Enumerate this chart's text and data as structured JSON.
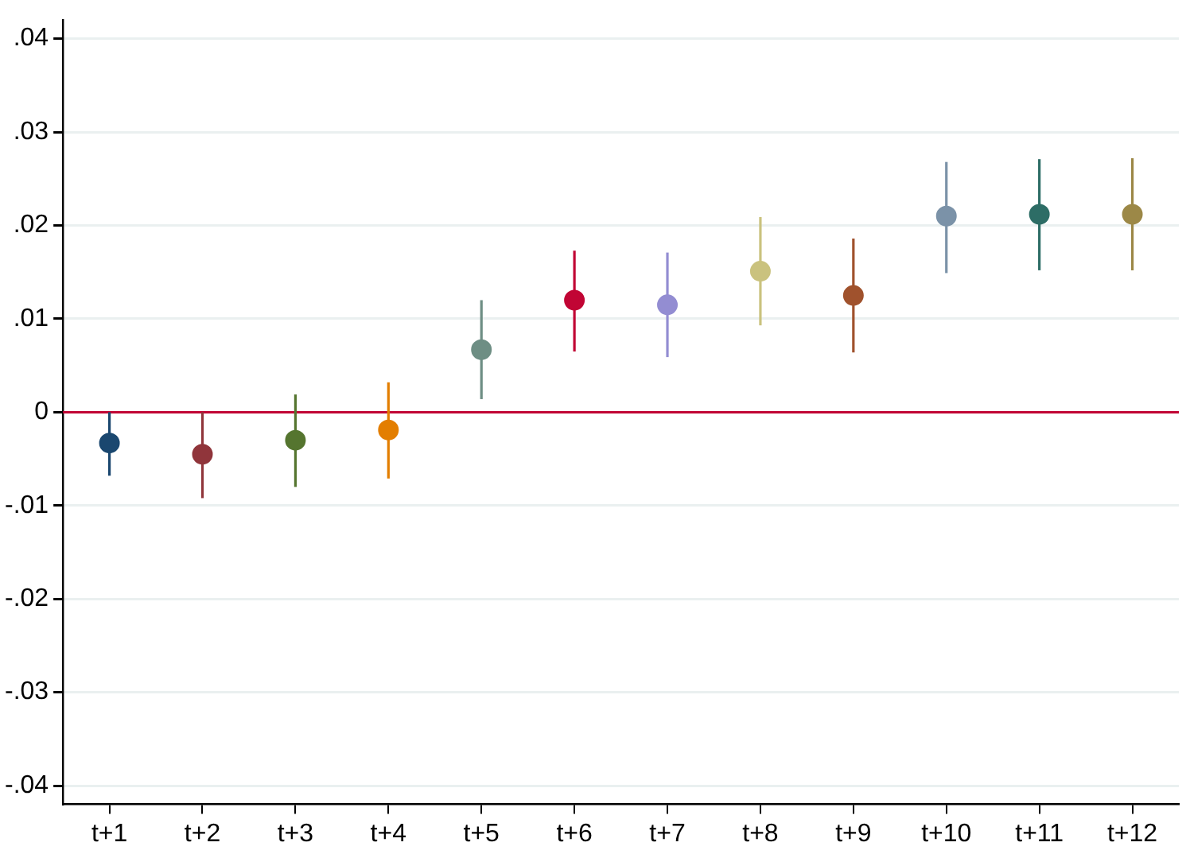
{
  "chart_data": {
    "type": "scatter",
    "categories": [
      "t+1",
      "t+2",
      "t+3",
      "t+4",
      "t+5",
      "t+6",
      "t+7",
      "t+8",
      "t+9",
      "t+10",
      "t+11",
      "t+12"
    ],
    "values": [
      -0.0033,
      -0.0045,
      -0.003,
      -0.0019,
      0.0067,
      0.012,
      0.0115,
      0.0151,
      0.0125,
      0.021,
      0.0212,
      0.0212
    ],
    "errors": [
      [
        -0.0068,
        0.0
      ],
      [
        -0.0092,
        0.0
      ],
      [
        -0.008,
        0.0019
      ],
      [
        -0.0071,
        0.0032
      ],
      [
        0.0014,
        0.012
      ],
      [
        0.0065,
        0.0173
      ],
      [
        0.0059,
        0.0171
      ],
      [
        0.0093,
        0.0209
      ],
      [
        0.0064,
        0.0186
      ],
      [
        0.0149,
        0.0268
      ],
      [
        0.0152,
        0.0271
      ],
      [
        0.0152,
        0.0272
      ]
    ],
    "colors": [
      "#1a476f",
      "#90353b",
      "#55752f",
      "#e37e00",
      "#6e8e84",
      "#c10534",
      "#938dd2",
      "#cac27e",
      "#a0522d",
      "#7b92a8",
      "#2d6d66",
      "#9c8847"
    ],
    "ylim": [
      -0.042,
      0.042
    ],
    "yticks": [
      {
        "value": -0.04,
        "label": "-.04"
      },
      {
        "value": -0.03,
        "label": "-.03"
      },
      {
        "value": -0.02,
        "label": "-.02"
      },
      {
        "value": -0.01,
        "label": "-.01"
      },
      0,
      {
        "value": 0.01,
        "label": ".01"
      },
      {
        "value": 0.02,
        "label": ".02"
      },
      {
        "value": 0.03,
        "label": ".03"
      },
      {
        "value": 0.04,
        "label": ".04"
      }
    ],
    "ref_lines": [
      {
        "axis": "y",
        "value": 0,
        "color": "#c10534"
      }
    ],
    "grid": "y",
    "marker": "circle",
    "legend": false
  }
}
